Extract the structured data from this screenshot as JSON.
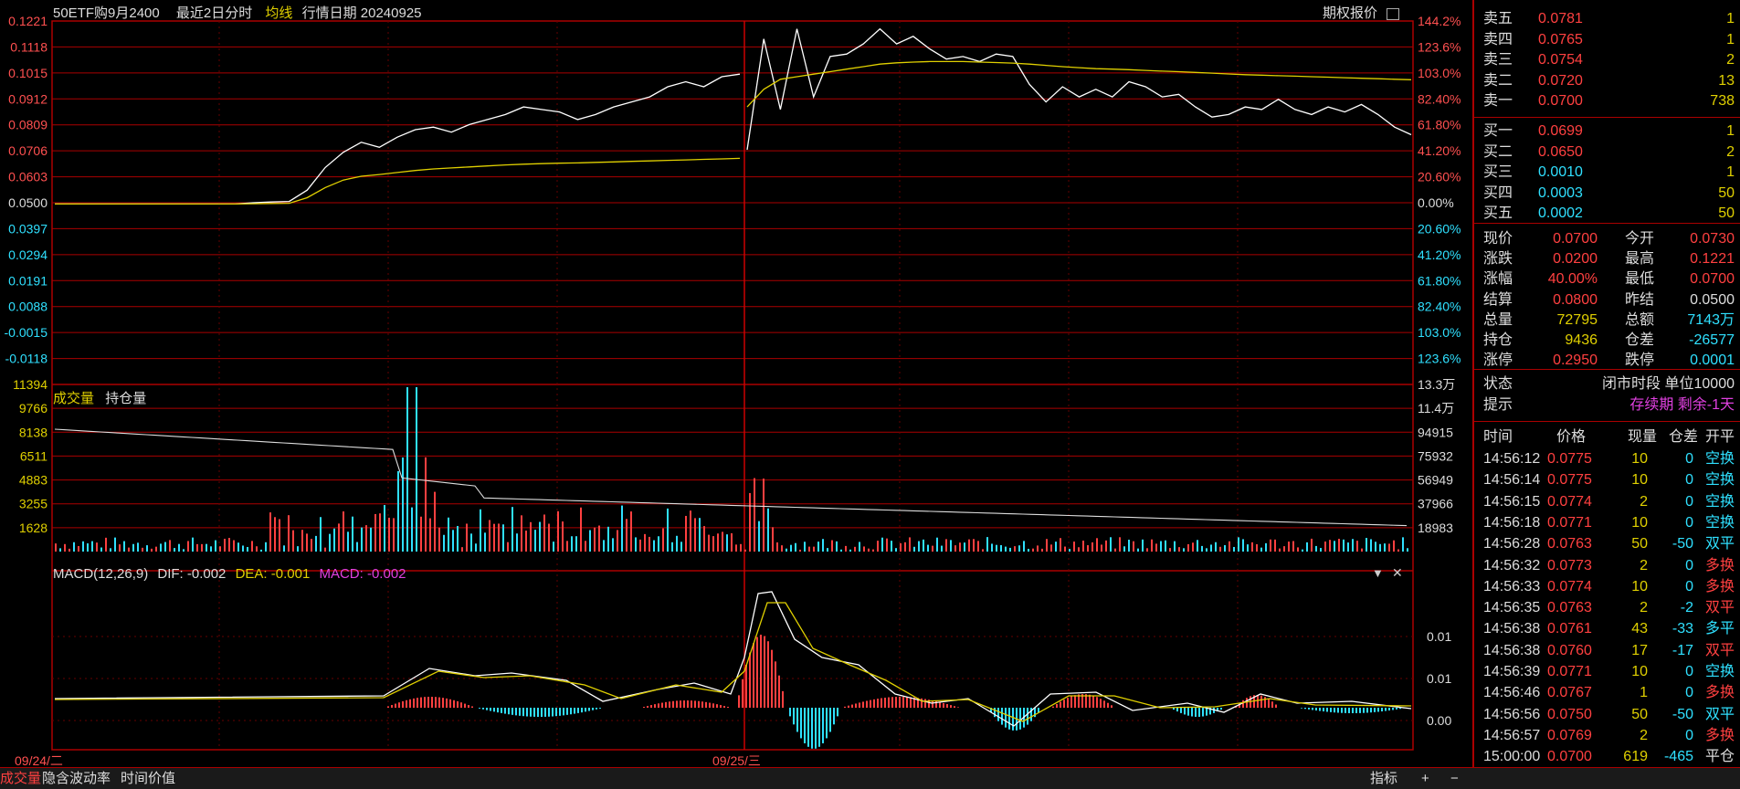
{
  "header": {
    "instrument": "50ETF购9月2400",
    "range": "最近2日分时",
    "avg_label": "均线",
    "date_label": "行情日期 20240925",
    "quote_button": "期权报价"
  },
  "left_axis": [
    "0.1221",
    "0.1118",
    "0.1015",
    "0.0912",
    "0.0809",
    "0.0706",
    "0.0603",
    "0.0500",
    "0.0397",
    "0.0294",
    "0.0191",
    "0.0088",
    "-0.0015",
    "-0.0118"
  ],
  "right_axis_pct": [
    "144.2%",
    "123.6%",
    "103.0%",
    "82.40%",
    "61.80%",
    "41.20%",
    "20.60%",
    "0.00%",
    "20.60%",
    "41.20%",
    "61.80%",
    "82.40%",
    "103.0%",
    "123.6%"
  ],
  "volume_left_axis": [
    "11394",
    "9766",
    "8138",
    "6511",
    "4883",
    "3255",
    "1628"
  ],
  "volume_right_axis": [
    "13.3万",
    "11.4万",
    "94915",
    "75932",
    "56949",
    "37966",
    "18983"
  ],
  "volume_legend": {
    "vol": "成交量",
    "oi": "持仓量"
  },
  "macd": {
    "title": "MACD(12,26,9)",
    "dif": "DIF: -0.002",
    "dea": "DEA: -0.001",
    "macd": "MACD: -0.002",
    "right_axis": [
      "0.01",
      "0.01",
      "0.00"
    ]
  },
  "x_labels": [
    "09/24/二",
    "09/25/三"
  ],
  "colors": {
    "up": "#ff4040",
    "down": "#2fe0ff",
    "price": "#ffffff",
    "avg": "#e0d000",
    "grid": "#a00000"
  },
  "chart_data": {
    "type": "line",
    "series": [
      {
        "name": "price",
        "day1": [
          0.0495,
          0.0495,
          0.0495,
          0.0495,
          0.0495,
          0.0495,
          0.0495,
          0.0495,
          0.0495,
          0.0495,
          0.0495,
          0.05,
          0.0503,
          0.0505,
          0.055,
          0.064,
          0.07,
          0.074,
          0.072,
          0.076,
          0.079,
          0.08,
          0.078,
          0.081,
          0.083,
          0.085,
          0.088,
          0.087,
          0.086,
          0.083,
          0.085,
          0.088,
          0.09,
          0.092,
          0.096,
          0.098,
          0.096,
          0.1,
          0.101
        ],
        "day2": [
          0.071,
          0.115,
          0.087,
          0.119,
          0.092,
          0.108,
          0.109,
          0.113,
          0.119,
          0.113,
          0.116,
          0.111,
          0.107,
          0.108,
          0.106,
          0.109,
          0.108,
          0.097,
          0.09,
          0.096,
          0.092,
          0.095,
          0.092,
          0.098,
          0.096,
          0.092,
          0.093,
          0.088,
          0.084,
          0.085,
          0.088,
          0.087,
          0.091,
          0.087,
          0.085,
          0.088,
          0.086,
          0.089,
          0.085,
          0.08,
          0.077
        ]
      },
      {
        "name": "avg",
        "day1": [
          0.0495,
          0.0495,
          0.0495,
          0.0495,
          0.0495,
          0.0495,
          0.0495,
          0.0495,
          0.0495,
          0.0495,
          0.0495,
          0.0496,
          0.0497,
          0.0498,
          0.052,
          0.056,
          0.059,
          0.0605,
          0.0612,
          0.062,
          0.0628,
          0.0634,
          0.0638,
          0.0642,
          0.0646,
          0.065,
          0.0653,
          0.0655,
          0.0657,
          0.0658,
          0.066,
          0.0662,
          0.0664,
          0.0666,
          0.0668,
          0.067,
          0.0672,
          0.0674,
          0.0676
        ],
        "day2": [
          0.088,
          0.095,
          0.099,
          0.1,
          0.101,
          0.102,
          0.103,
          0.104,
          0.105,
          0.1055,
          0.1058,
          0.106,
          0.106,
          0.106,
          0.1058,
          0.1056,
          0.1054,
          0.105,
          0.1045,
          0.104,
          0.1036,
          0.1032,
          0.103,
          0.1028,
          0.1025,
          0.1022,
          0.102,
          0.1017,
          0.1014,
          0.1011,
          0.1008,
          0.1006,
          0.1004,
          0.1002,
          0.1,
          0.0998,
          0.0996,
          0.0994,
          0.0992,
          0.099,
          0.0988
        ]
      }
    ]
  },
  "order_book": {
    "asks": [
      {
        "label": "卖五",
        "price": "0.0781",
        "qty": "1"
      },
      {
        "label": "卖四",
        "price": "0.0765",
        "qty": "1"
      },
      {
        "label": "卖三",
        "price": "0.0754",
        "qty": "2"
      },
      {
        "label": "卖二",
        "price": "0.0720",
        "qty": "13"
      },
      {
        "label": "卖一",
        "price": "0.0700",
        "qty": "738"
      }
    ],
    "bids": [
      {
        "label": "买一",
        "price": "0.0699",
        "qty": "1",
        "c": "red"
      },
      {
        "label": "买二",
        "price": "0.0650",
        "qty": "2",
        "c": "red"
      },
      {
        "label": "买三",
        "price": "0.0010",
        "qty": "1",
        "c": "cyan"
      },
      {
        "label": "买四",
        "price": "0.0003",
        "qty": "50",
        "c": "cyan"
      },
      {
        "label": "买五",
        "price": "0.0002",
        "qty": "50",
        "c": "cyan"
      }
    ]
  },
  "stats": [
    {
      "l1": "现价",
      "v1": "0.0700",
      "c1": "red",
      "l2": "今开",
      "v2": "0.0730",
      "c2": "red"
    },
    {
      "l1": "涨跌",
      "v1": "0.0200",
      "c1": "red",
      "l2": "最高",
      "v2": "0.1221",
      "c2": "red"
    },
    {
      "l1": "涨幅",
      "v1": "40.00%",
      "c1": "red",
      "l2": "最低",
      "v2": "0.0700",
      "c2": "red"
    },
    {
      "l1": "结算",
      "v1": "0.0800",
      "c1": "red",
      "l2": "昨结",
      "v2": "0.0500",
      "c2": "white"
    },
    {
      "l1": "总量",
      "v1": "72795",
      "c1": "yellow",
      "l2": "总额",
      "v2": "7143万",
      "c2": "cyan"
    },
    {
      "l1": "持仓",
      "v1": "9436",
      "c1": "yellow",
      "l2": "仓差",
      "v2": "-26577",
      "c2": "cyan"
    },
    {
      "l1": "涨停",
      "v1": "0.2950",
      "c1": "red",
      "l2": "跌停",
      "v2": "0.0001",
      "c2": "cyan"
    }
  ],
  "status": {
    "label": "状态",
    "value": "闭市时段 单位10000",
    "hint_label": "提示",
    "hint_value": "存续期 剩余-1天"
  },
  "ticks_header": [
    "时间",
    "价格",
    "现量",
    "仓差",
    "开平"
  ],
  "ticks": [
    {
      "t": "14:56:12",
      "p": "0.0775",
      "q": "10",
      "d": "0",
      "k": "空换",
      "kc": "cyan"
    },
    {
      "t": "14:56:14",
      "p": "0.0775",
      "q": "10",
      "d": "0",
      "k": "空换",
      "kc": "cyan"
    },
    {
      "t": "14:56:15",
      "p": "0.0774",
      "q": "2",
      "d": "0",
      "k": "空换",
      "kc": "cyan"
    },
    {
      "t": "14:56:18",
      "p": "0.0771",
      "q": "10",
      "d": "0",
      "k": "空换",
      "kc": "cyan"
    },
    {
      "t": "14:56:28",
      "p": "0.0763",
      "q": "50",
      "d": "-50",
      "k": "双平",
      "kc": "cyan"
    },
    {
      "t": "14:56:32",
      "p": "0.0773",
      "q": "2",
      "d": "0",
      "k": "多换",
      "kc": "red"
    },
    {
      "t": "14:56:33",
      "p": "0.0774",
      "q": "10",
      "d": "0",
      "k": "多换",
      "kc": "red"
    },
    {
      "t": "14:56:35",
      "p": "0.0763",
      "q": "2",
      "d": "-2",
      "k": "双平",
      "kc": "red"
    },
    {
      "t": "14:56:38",
      "p": "0.0761",
      "q": "43",
      "d": "-33",
      "k": "多平",
      "kc": "cyan"
    },
    {
      "t": "14:56:38",
      "p": "0.0760",
      "q": "17",
      "d": "-17",
      "k": "双平",
      "kc": "red"
    },
    {
      "t": "14:56:39",
      "p": "0.0771",
      "q": "10",
      "d": "0",
      "k": "空换",
      "kc": "cyan"
    },
    {
      "t": "14:56:46",
      "p": "0.0767",
      "q": "1",
      "d": "0",
      "k": "多换",
      "kc": "red"
    },
    {
      "t": "14:56:56",
      "p": "0.0750",
      "q": "50",
      "d": "-50",
      "k": "双平",
      "kc": "cyan"
    },
    {
      "t": "14:56:57",
      "p": "0.0769",
      "q": "2",
      "d": "0",
      "k": "多换",
      "kc": "red"
    },
    {
      "t": "15:00:00",
      "p": "0.0700",
      "q": "619",
      "d": "-465",
      "k": "平仓",
      "kc": "white"
    }
  ],
  "bottom_tabs": [
    "成交量",
    "隐含波动率",
    "时间价值"
  ],
  "bottom_right": {
    "indicator": "指标",
    "plus": "+",
    "minus": "−"
  }
}
